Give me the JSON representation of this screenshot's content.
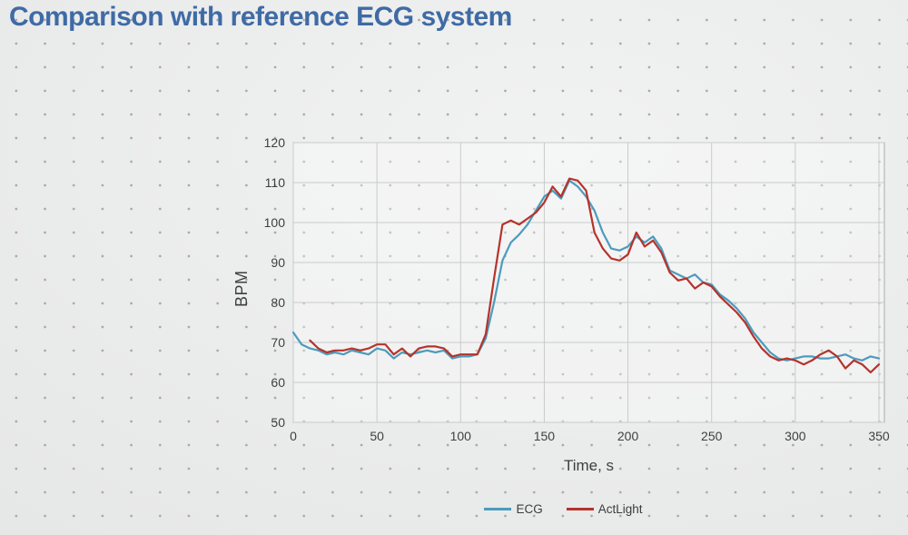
{
  "title": "Comparison with reference ECG system",
  "colors": {
    "title_text": "#3f6ba5",
    "axis_text": "#3f3f3f",
    "gridline": "#c9cbcb",
    "plot_border": "#aaadad",
    "ecg_line": "#4c9bbd",
    "actlight_line": "#b5332b",
    "background": "#e9eaea"
  },
  "chart_data": {
    "type": "line",
    "title": "",
    "xlabel": "Time, s",
    "ylabel": "BPM",
    "xlim": [
      0,
      353
    ],
    "ylim": [
      50,
      120
    ],
    "x_ticks": [
      0,
      50,
      100,
      150,
      200,
      250,
      300,
      350
    ],
    "y_ticks": [
      50,
      60,
      70,
      80,
      90,
      100,
      110,
      120
    ],
    "grid": true,
    "legend_position": "bottom",
    "series": [
      {
        "name": "ECG",
        "color": "#4c9bbd",
        "x": [
          0,
          5,
          10,
          15,
          20,
          25,
          30,
          35,
          40,
          45,
          50,
          55,
          60,
          65,
          70,
          75,
          80,
          85,
          90,
          95,
          100,
          105,
          110,
          115,
          120,
          125,
          130,
          135,
          140,
          145,
          150,
          155,
          160,
          165,
          170,
          175,
          180,
          185,
          190,
          195,
          200,
          205,
          210,
          215,
          220,
          225,
          230,
          235,
          240,
          245,
          250,
          255,
          260,
          265,
          270,
          275,
          280,
          285,
          290,
          295,
          300,
          305,
          310,
          315,
          320,
          325,
          330,
          335,
          340,
          345,
          350
        ],
        "y": [
          72.5,
          69.5,
          68.5,
          68,
          67,
          67.5,
          67,
          68,
          67.5,
          67,
          68.5,
          68,
          66,
          67.5,
          67,
          67.5,
          68,
          67.5,
          68,
          66,
          66.5,
          66.5,
          67,
          71,
          80,
          90.5,
          95,
          97,
          99.5,
          103,
          106.5,
          108,
          106,
          110.5,
          109,
          106.5,
          103,
          97.5,
          93.5,
          93,
          94,
          96.5,
          95,
          96.5,
          93.5,
          88,
          87,
          86,
          87,
          85,
          84.5,
          82,
          80.5,
          78.5,
          76,
          72.5,
          70,
          67.5,
          66,
          65.5,
          66,
          66.5,
          66.5,
          66,
          66,
          66.5,
          67,
          66,
          65.5,
          66.5,
          66
        ]
      },
      {
        "name": "ActLight",
        "color": "#b5332b",
        "x": [
          10,
          15,
          20,
          25,
          30,
          35,
          40,
          45,
          50,
          55,
          60,
          65,
          70,
          75,
          80,
          85,
          90,
          95,
          100,
          105,
          110,
          115,
          120,
          125,
          130,
          135,
          140,
          145,
          150,
          155,
          160,
          165,
          170,
          175,
          180,
          185,
          190,
          195,
          200,
          205,
          210,
          215,
          220,
          225,
          230,
          235,
          240,
          245,
          250,
          255,
          260,
          265,
          270,
          275,
          280,
          285,
          290,
          295,
          300,
          305,
          310,
          315,
          320,
          325,
          330,
          335,
          340,
          345,
          350
        ],
        "y": [
          70.5,
          68.5,
          67.5,
          68,
          68,
          68.5,
          68,
          68.5,
          69.5,
          69.5,
          67,
          68.5,
          66.5,
          68.5,
          69,
          69,
          68.5,
          66.5,
          67,
          67,
          67,
          72,
          86,
          99.5,
          100.5,
          99.5,
          101,
          102.5,
          105,
          109,
          106.5,
          111,
          110.5,
          108,
          97.5,
          93.5,
          91,
          90.5,
          92,
          97.5,
          94,
          95.5,
          92.5,
          87.5,
          85.5,
          86,
          83.5,
          85,
          84,
          81.5,
          79.5,
          77.5,
          75,
          71.5,
          68.5,
          66.5,
          65.5,
          66,
          65.5,
          64.5,
          65.5,
          67,
          68,
          66.5,
          63.5,
          65.5,
          64.5,
          62.5,
          64.5
        ]
      }
    ]
  }
}
